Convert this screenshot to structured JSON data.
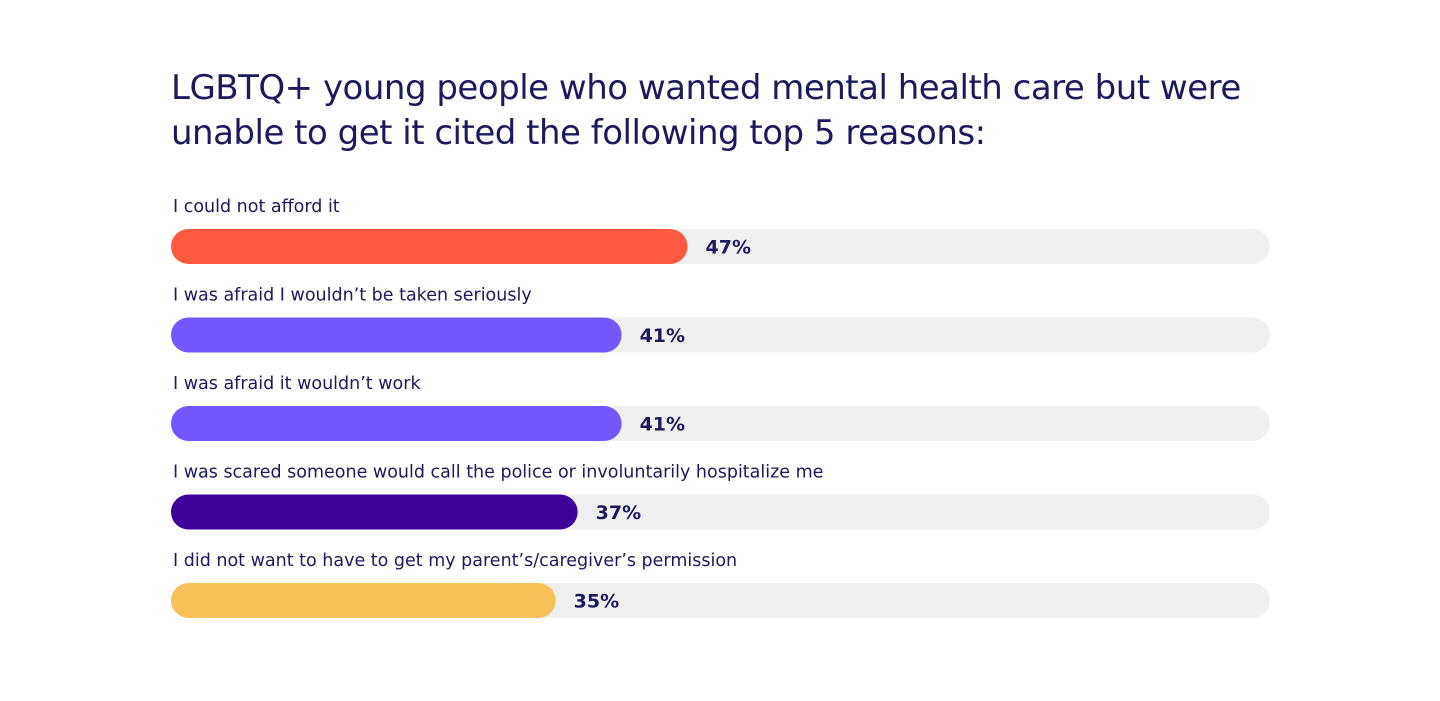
{
  "chart_data": {
    "type": "bar",
    "orientation": "horizontal",
    "title": "LGBTQ+ young people who wanted mental health care but were unable to get it cited the following top 5 reasons:",
    "categories": [
      "I could not afford it",
      "I was afraid I wouldn’t be taken seriously",
      "I was afraid it wouldn’t work",
      "I was scared someone would call the police or involuntarily hospitalize me",
      "I did not want to have to get my parent’s/caregiver’s permission"
    ],
    "values": [
      47,
      41,
      41,
      37,
      35
    ],
    "value_labels": [
      "47%",
      "41%",
      "41%",
      "37%",
      "35%"
    ],
    "colors": [
      "#ff5a40",
      "#7457ff",
      "#7457ff",
      "#3d0099",
      "#f8c058"
    ],
    "track_color": "#f0f0f0",
    "xlim": [
      0,
      100
    ],
    "grid": false,
    "legend": "none"
  }
}
